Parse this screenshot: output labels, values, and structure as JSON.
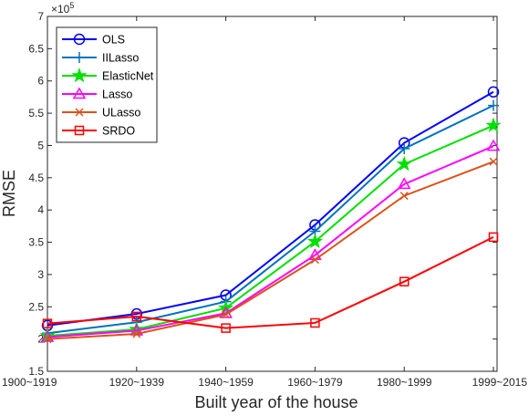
{
  "chart_data": {
    "type": "line",
    "title": "",
    "xlabel": "Built year of the house",
    "ylabel": "RMSE",
    "y_exponent_label": "×10",
    "y_exponent_power": "5",
    "categories": [
      "1900~1919",
      "1920~1939",
      "1940~1959",
      "1960~1979",
      "1980~1999",
      "1999~2015"
    ],
    "ylim": [
      1.5,
      7
    ],
    "yticks": [
      "1.5",
      "2",
      "2.5",
      "3",
      "3.5",
      "4",
      "4.5",
      "5",
      "5.5",
      "6",
      "6.5",
      "7"
    ],
    "grid": false,
    "legend_position": "top-left",
    "series": [
      {
        "name": "OLS",
        "color": "#0000ff",
        "marker": "circle",
        "values": [
          2.21,
          2.39,
          2.68,
          3.77,
          5.04,
          5.83
        ]
      },
      {
        "name": "IILasso",
        "color": "#0072bd",
        "marker": "plus",
        "values": [
          2.09,
          2.26,
          2.58,
          3.67,
          4.95,
          5.62
        ]
      },
      {
        "name": "ElasticNet",
        "color": "#00e000",
        "marker": "star",
        "values": [
          2.05,
          2.15,
          2.48,
          3.51,
          4.71,
          5.31
        ]
      },
      {
        "name": "Lasso",
        "color": "#ff00ff",
        "marker": "triangle",
        "values": [
          2.03,
          2.13,
          2.4,
          3.3,
          4.4,
          4.99
        ]
      },
      {
        "name": "ULasso",
        "color": "#d95319",
        "marker": "x",
        "values": [
          2.0,
          2.08,
          2.38,
          3.23,
          4.22,
          4.75
        ]
      },
      {
        "name": "SRDO",
        "color": "#ff0000",
        "marker": "square",
        "values": [
          2.24,
          2.35,
          2.17,
          2.25,
          2.89,
          3.58
        ]
      }
    ]
  }
}
